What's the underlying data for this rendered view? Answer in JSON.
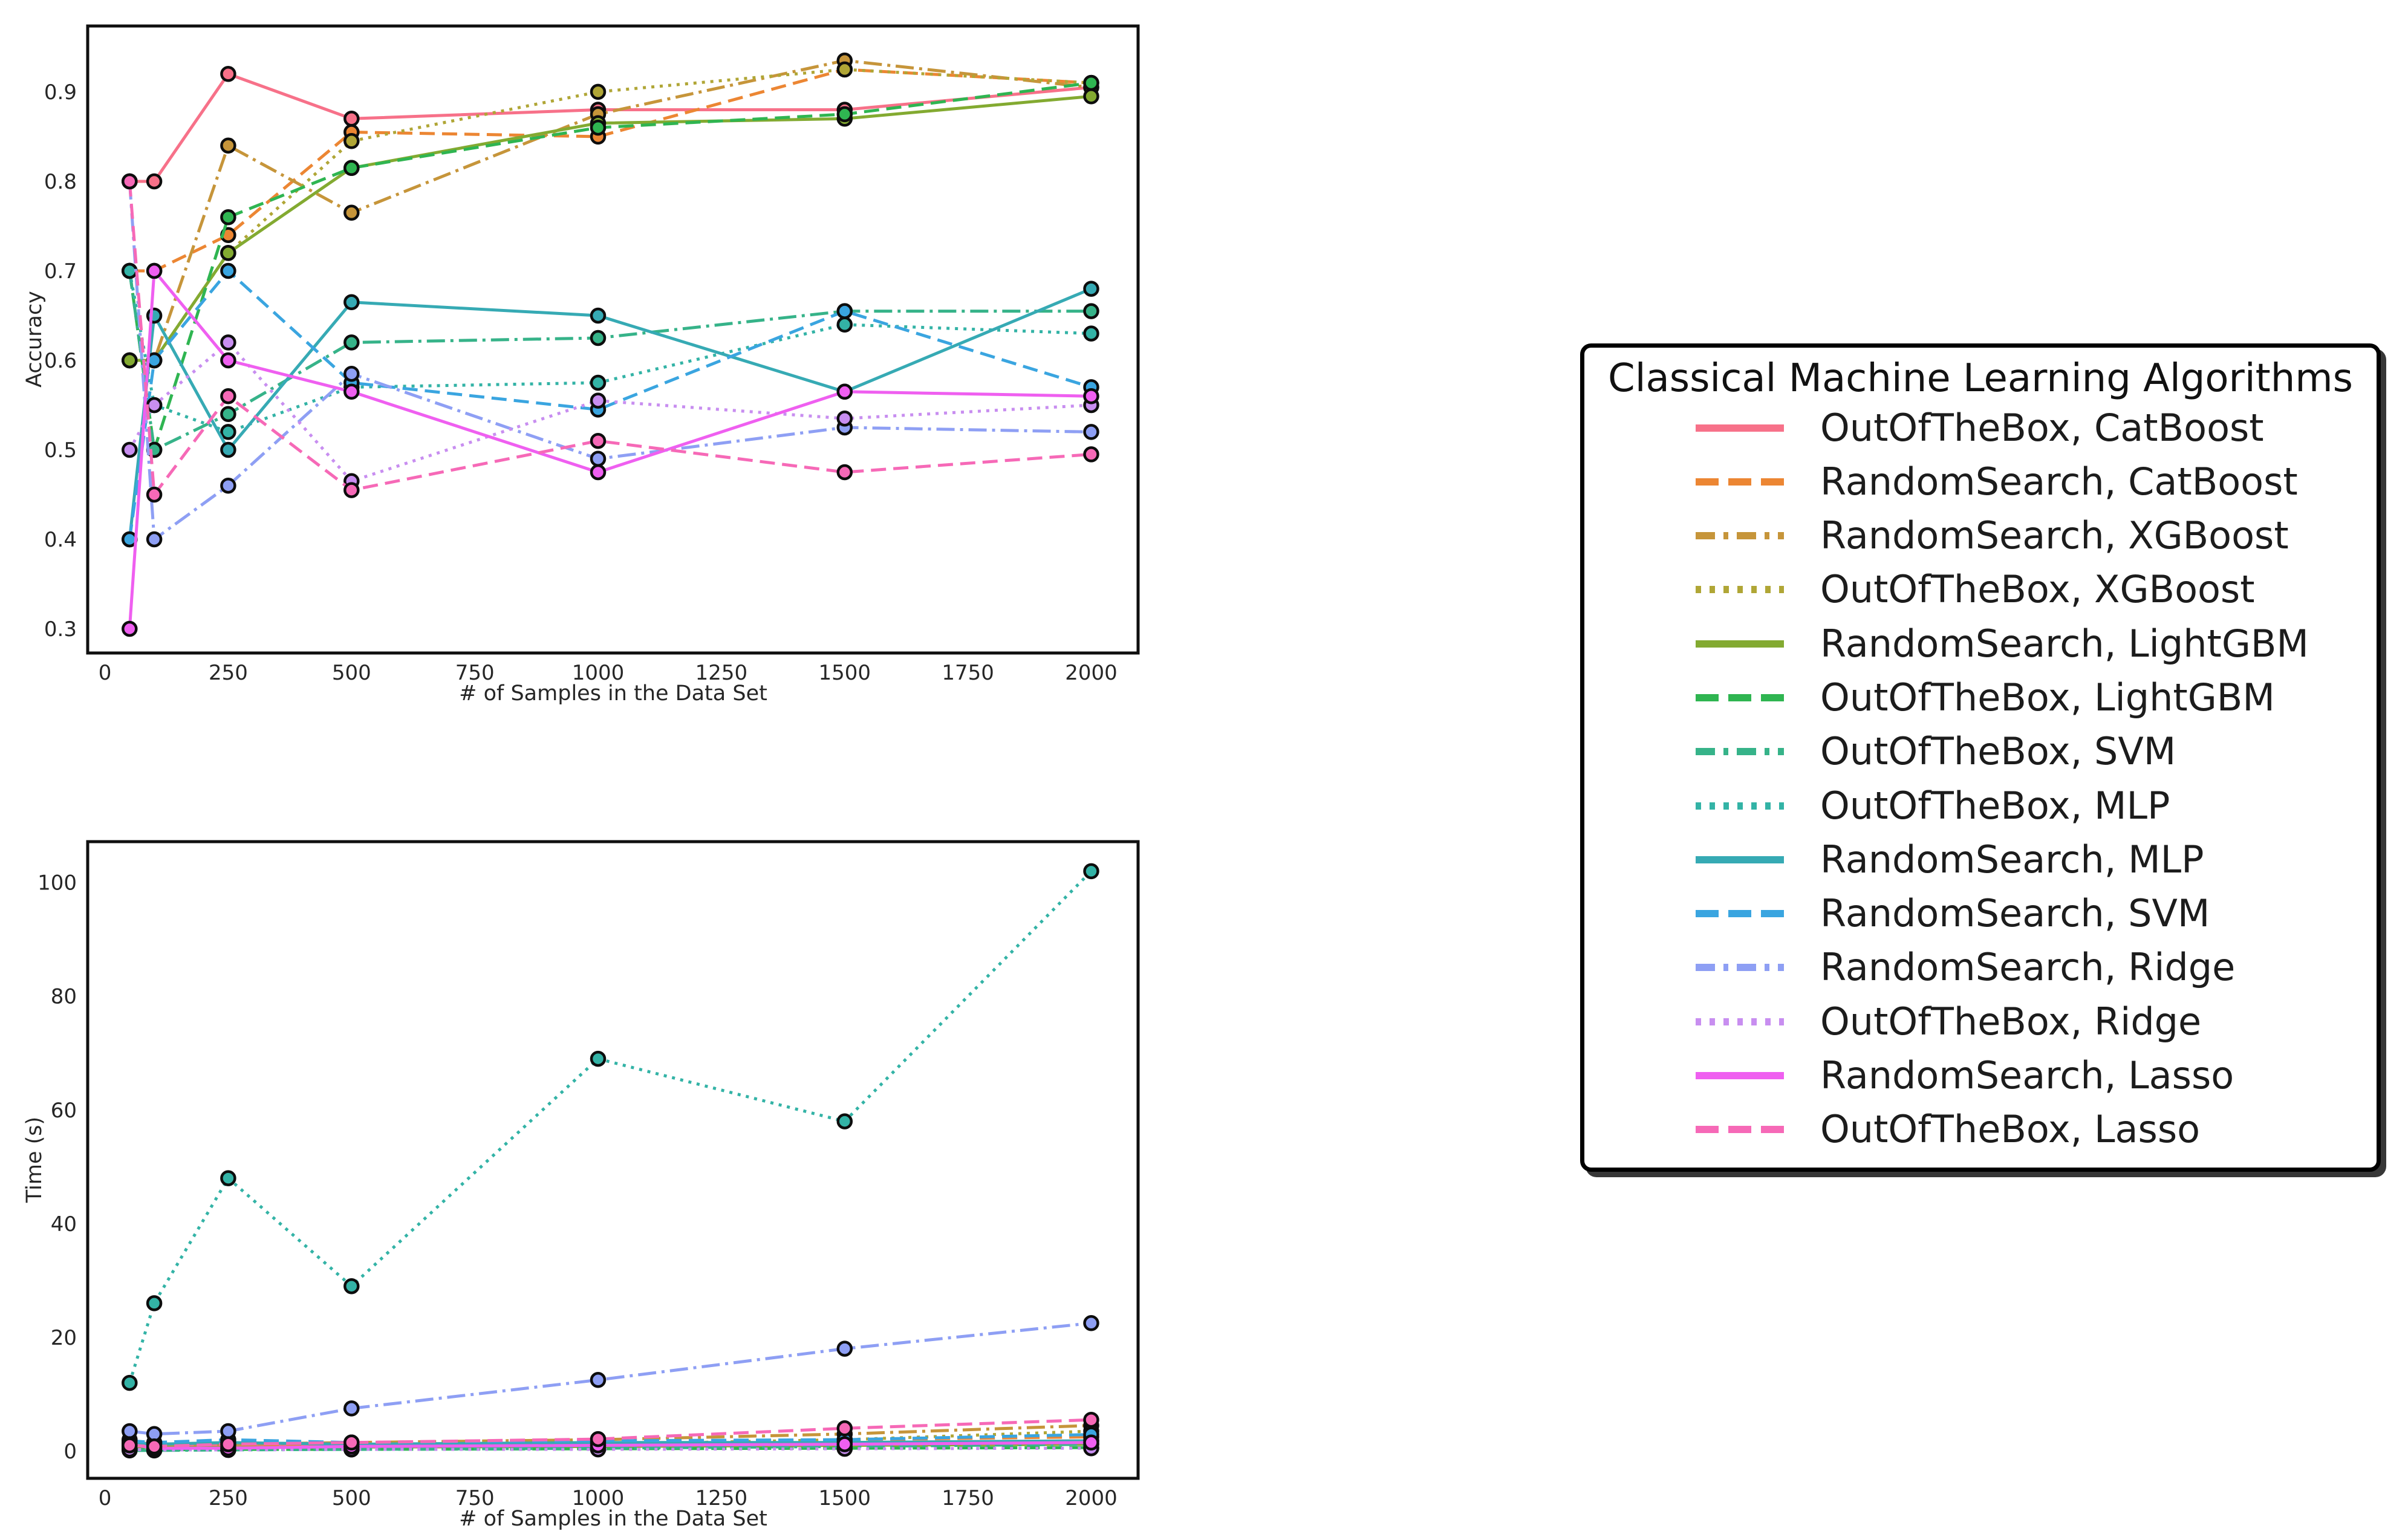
{
  "legend": {
    "title": "Classical Machine Learning Algorithms",
    "entries": [
      {
        "label": "OutOfTheBox, CatBoost",
        "color": "#f77189",
        "dash": "solid"
      },
      {
        "label": "RandomSearch, CatBoost",
        "color": "#ec8633",
        "dash": "dashed"
      },
      {
        "label": "RandomSearch, XGBoost",
        "color": "#c6953a",
        "dash": "dashdot"
      },
      {
        "label": "OutOfTheBox, XGBoost",
        "color": "#b0a636",
        "dash": "dotted"
      },
      {
        "label": "RandomSearch, LightGBM",
        "color": "#83aa31",
        "dash": "solid"
      },
      {
        "label": "OutOfTheBox, LightGBM",
        "color": "#2fb551",
        "dash": "dashed"
      },
      {
        "label": "OutOfTheBox, SVM",
        "color": "#36b389",
        "dash": "dashdot"
      },
      {
        "label": "OutOfTheBox, MLP",
        "color": "#33b3a6",
        "dash": "dotted"
      },
      {
        "label": "RandomSearch, MLP",
        "color": "#36aab4",
        "dash": "solid"
      },
      {
        "label": "RandomSearch, SVM",
        "color": "#3aa5e0",
        "dash": "dashed"
      },
      {
        "label": "RandomSearch, Ridge",
        "color": "#8e9ff4",
        "dash": "dashdot"
      },
      {
        "label": "OutOfTheBox, Ridge",
        "color": "#c88ef0",
        "dash": "dotted"
      },
      {
        "label": "RandomSearch, Lasso",
        "color": "#ef5ff0",
        "dash": "solid"
      },
      {
        "label": "OutOfTheBox, Lasso",
        "color": "#f669b7",
        "dash": "dashed"
      }
    ]
  },
  "chart_data": [
    {
      "type": "line",
      "title": "",
      "xlabel": "# of Samples in the Data Set",
      "ylabel": "Accuracy",
      "x": [
        50,
        100,
        250,
        500,
        1000,
        1500,
        2000
      ],
      "xticks": [
        0,
        250,
        500,
        750,
        1000,
        1250,
        1500,
        1750,
        2000
      ],
      "yticks": [
        0.3,
        0.4,
        0.5,
        0.6,
        0.7,
        0.8,
        0.9
      ],
      "xlim": [
        -35,
        2095
      ],
      "ylim": [
        0.27,
        0.97
      ],
      "grid": false,
      "legend_position": "outside-right",
      "series": [
        {
          "name": "OutOfTheBox, CatBoost",
          "values": [
            0.8,
            0.8,
            0.92,
            0.87,
            0.88,
            0.88,
            0.905
          ]
        },
        {
          "name": "RandomSearch, CatBoost",
          "values": [
            0.7,
            0.7,
            0.74,
            0.855,
            0.85,
            0.925,
            0.91
          ]
        },
        {
          "name": "RandomSearch, XGBoost",
          "values": [
            0.6,
            0.6,
            0.84,
            0.765,
            0.875,
            0.935,
            0.905
          ]
        },
        {
          "name": "OutOfTheBox, XGBoost",
          "values": [
            0.6,
            0.6,
            0.72,
            0.845,
            0.9,
            0.925,
            0.91
          ]
        },
        {
          "name": "RandomSearch, LightGBM",
          "values": [
            0.6,
            0.6,
            0.72,
            0.815,
            0.865,
            0.87,
            0.895
          ]
        },
        {
          "name": "OutOfTheBox, LightGBM",
          "values": [
            0.7,
            0.5,
            0.76,
            0.815,
            0.86,
            0.875,
            0.91
          ]
        },
        {
          "name": "OutOfTheBox, SVM",
          "values": [
            0.7,
            0.5,
            0.54,
            0.62,
            0.625,
            0.655,
            0.655
          ]
        },
        {
          "name": "OutOfTheBox, MLP",
          "values": [
            0.7,
            0.55,
            0.52,
            0.57,
            0.575,
            0.64,
            0.63
          ]
        },
        {
          "name": "RandomSearch, MLP",
          "values": [
            0.4,
            0.65,
            0.5,
            0.665,
            0.65,
            0.565,
            0.68
          ]
        },
        {
          "name": "RandomSearch, SVM",
          "values": [
            0.4,
            0.6,
            0.7,
            0.575,
            0.545,
            0.655,
            0.57
          ]
        },
        {
          "name": "RandomSearch, Ridge",
          "values": [
            0.8,
            0.4,
            0.46,
            0.585,
            0.49,
            0.525,
            0.52
          ]
        },
        {
          "name": "OutOfTheBox, Ridge",
          "values": [
            0.5,
            0.55,
            0.62,
            0.465,
            0.555,
            0.535,
            0.55
          ]
        },
        {
          "name": "RandomSearch, Lasso",
          "values": [
            0.3,
            0.7,
            0.6,
            0.565,
            0.475,
            0.565,
            0.56
          ]
        },
        {
          "name": "OutOfTheBox, Lasso",
          "values": [
            0.8,
            0.45,
            0.56,
            0.455,
            0.51,
            0.475,
            0.495
          ]
        }
      ]
    },
    {
      "type": "line",
      "title": "",
      "xlabel": "# of Samples in the Data Set",
      "ylabel": "Time (s)",
      "x": [
        50,
        100,
        250,
        500,
        1000,
        1500,
        2000
      ],
      "xticks": [
        0,
        250,
        500,
        750,
        1000,
        1250,
        1500,
        1750,
        2000
      ],
      "yticks": [
        0,
        20,
        40,
        60,
        80,
        100
      ],
      "xlim": [
        -35,
        2095
      ],
      "ylim": [
        -5,
        107
      ],
      "grid": false,
      "legend_position": "none",
      "series": [
        {
          "name": "OutOfTheBox, CatBoost",
          "values": [
            2.0,
            1.0,
            1.0,
            1.0,
            1.2,
            1.5,
            1.8
          ]
        },
        {
          "name": "RandomSearch, CatBoost",
          "values": [
            1.0,
            0.8,
            1.0,
            1.2,
            1.5,
            2.0,
            2.5
          ]
        },
        {
          "name": "RandomSearch, XGBoost",
          "values": [
            1.2,
            1.0,
            1.2,
            1.5,
            2.0,
            3.0,
            4.5
          ]
        },
        {
          "name": "OutOfTheBox, XGBoost",
          "values": [
            0.5,
            0.4,
            0.5,
            0.8,
            1.2,
            2.0,
            3.5
          ]
        },
        {
          "name": "RandomSearch, LightGBM",
          "values": [
            0.8,
            0.6,
            0.6,
            0.7,
            0.8,
            1.0,
            1.2
          ]
        },
        {
          "name": "OutOfTheBox, LightGBM",
          "values": [
            0.3,
            0.2,
            0.3,
            0.3,
            0.4,
            0.5,
            0.6
          ]
        },
        {
          "name": "OutOfTheBox, SVM",
          "values": [
            0.1,
            0.1,
            0.2,
            0.3,
            0.5,
            0.8,
            1.2
          ]
        },
        {
          "name": "OutOfTheBox, MLP",
          "values": [
            12,
            26,
            48,
            29,
            69,
            58,
            102
          ]
        },
        {
          "name": "RandomSearch, MLP",
          "values": [
            1.5,
            1.2,
            1.5,
            1.2,
            1.5,
            1.5,
            1.8
          ]
        },
        {
          "name": "RandomSearch, SVM",
          "values": [
            1.8,
            1.5,
            2.0,
            1.5,
            1.8,
            2.0,
            2.9
          ]
        },
        {
          "name": "RandomSearch, Ridge",
          "values": [
            3.5,
            3.0,
            3.5,
            7.5,
            12.5,
            18,
            22.5
          ]
        },
        {
          "name": "OutOfTheBox, Ridge",
          "values": [
            0.3,
            0.2,
            0.2,
            0.3,
            0.3,
            0.4,
            0.5
          ]
        },
        {
          "name": "RandomSearch, Lasso",
          "values": [
            1.2,
            0.5,
            0.5,
            0.8,
            1.0,
            1.2,
            1.5
          ]
        },
        {
          "name": "OutOfTheBox, Lasso",
          "values": [
            1.0,
            0.8,
            1.2,
            1.5,
            2.1,
            4.0,
            5.5
          ]
        }
      ]
    }
  ]
}
